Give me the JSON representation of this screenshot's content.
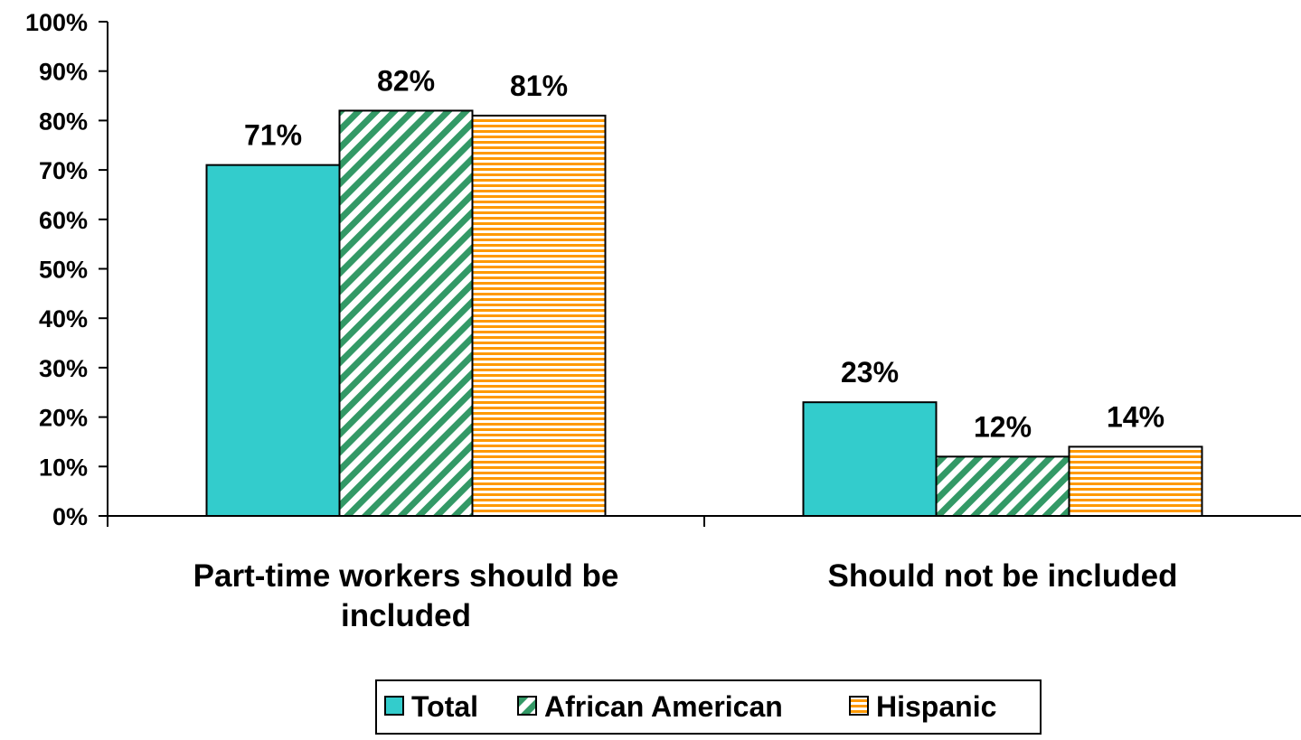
{
  "chart_data": {
    "type": "bar",
    "title": "",
    "xlabel": "",
    "ylabel": "",
    "ylim": [
      0,
      100
    ],
    "y_ticks": [
      "0%",
      "10%",
      "20%",
      "30%",
      "40%",
      "50%",
      "60%",
      "70%",
      "80%",
      "90%",
      "100%"
    ],
    "y_tick_values": [
      0,
      10,
      20,
      30,
      40,
      50,
      60,
      70,
      80,
      90,
      100
    ],
    "categories": [
      [
        "Part-time workers should be",
        "included"
      ],
      [
        "Should not be included"
      ]
    ],
    "series": [
      {
        "name": "Total",
        "values": [
          71,
          23
        ],
        "labels": [
          "71%",
          "23%"
        ],
        "color": "#33CCCC",
        "pattern": "solid"
      },
      {
        "name": "African American",
        "values": [
          82,
          12
        ],
        "labels": [
          "82%",
          "12%"
        ],
        "color": "#339966",
        "pattern": "diagonal-stripes"
      },
      {
        "name": "Hispanic",
        "values": [
          81,
          14
        ],
        "labels": [
          "81%",
          "14%"
        ],
        "color": "#FF9900",
        "pattern": "horizontal-stripes"
      }
    ],
    "grid": false,
    "legend_position": "bottom-center"
  }
}
